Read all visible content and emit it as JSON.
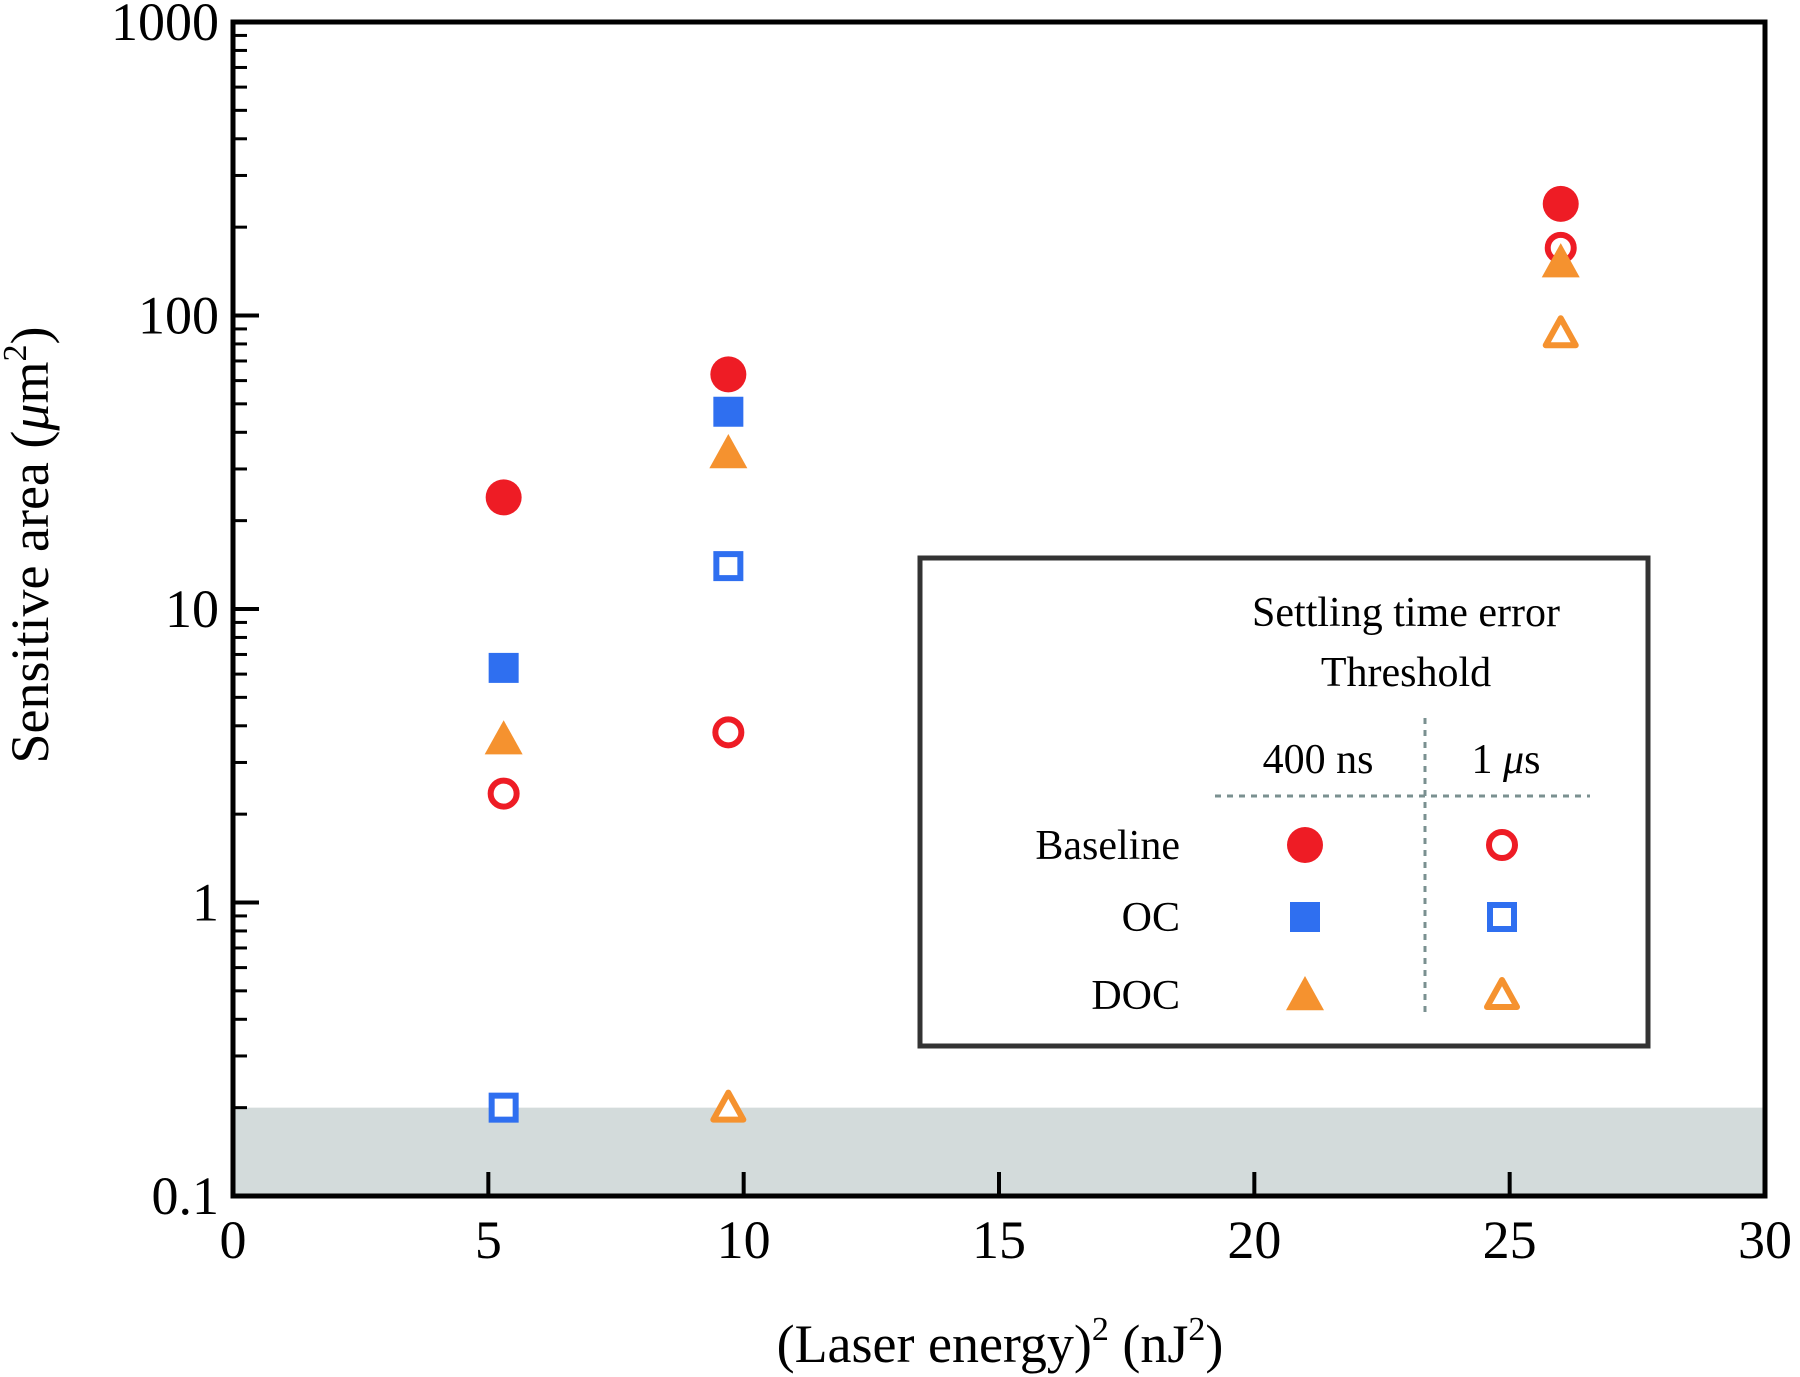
{
  "chart_data": {
    "type": "scatter",
    "x_axis": {
      "label_main": "(Laser energy)",
      "label_sup": "2",
      "label_unit_open": " (nJ",
      "label_unit_sup": "2",
      "label_unit_close": ")",
      "range": [
        0,
        30
      ],
      "ticks": [
        0,
        5,
        10,
        15,
        20,
        25,
        30
      ],
      "tick_labels": [
        "0",
        "5",
        "10",
        "15",
        "20",
        "25",
        "30"
      ]
    },
    "y_axis": {
      "label_main": "Sensitive area (",
      "label_mu": "μ",
      "label_m": "m",
      "label_sup": "2",
      "label_close": ")",
      "scale": "log",
      "range": [
        0.1,
        1000
      ],
      "ticks": [
        0.1,
        1,
        10,
        100,
        1000
      ],
      "tick_labels": [
        "0.1",
        "1",
        "10",
        "100",
        "1000"
      ]
    },
    "grid": false,
    "shaded_band": {
      "y_from": 0.1,
      "y_to": 0.2,
      "color": "#d3dbdb"
    },
    "series": [
      {
        "key": "baseline_400",
        "marker": "circle",
        "filled": true,
        "color": "#ee1c25",
        "points": [
          [
            5.3,
            24
          ],
          [
            9.7,
            63
          ],
          [
            26.0,
            240
          ]
        ]
      },
      {
        "key": "baseline_1us",
        "marker": "circle",
        "filled": false,
        "color": "#ee1c25",
        "points": [
          [
            5.3,
            2.35
          ],
          [
            9.7,
            3.8
          ],
          [
            26.0,
            170
          ]
        ]
      },
      {
        "key": "oc_400",
        "marker": "square",
        "filled": true,
        "color": "#2f6ff0",
        "points": [
          [
            5.3,
            6.3
          ],
          [
            9.7,
            47
          ]
        ]
      },
      {
        "key": "oc_1us",
        "marker": "square",
        "filled": false,
        "color": "#2f6ff0",
        "points": [
          [
            5.3,
            0.2
          ],
          [
            9.7,
            14
          ]
        ]
      },
      {
        "key": "doc_400",
        "marker": "triangle",
        "filled": true,
        "color": "#f5922f",
        "points": [
          [
            5.3,
            3.6
          ],
          [
            9.7,
            34
          ],
          [
            26.0,
            152
          ]
        ]
      },
      {
        "key": "doc_1us",
        "marker": "triangle",
        "filled": false,
        "color": "#f5922f",
        "points": [
          [
            9.7,
            0.2
          ],
          [
            26.0,
            87
          ]
        ]
      }
    ],
    "legend": {
      "placement": "lower-right",
      "title_line1": "Settling time error",
      "title_line2": "Threshold",
      "col_400": "400 ns",
      "col_1us_num": "1 ",
      "col_1us_mu": "μ",
      "col_1us_s": "s",
      "rows": [
        {
          "label": "Baseline",
          "marker": "circle",
          "color": "#ee1c25"
        },
        {
          "label": "OC",
          "marker": "square",
          "color": "#2f6ff0"
        },
        {
          "label": "DOC",
          "marker": "triangle",
          "color": "#f5922f"
        }
      ]
    }
  }
}
